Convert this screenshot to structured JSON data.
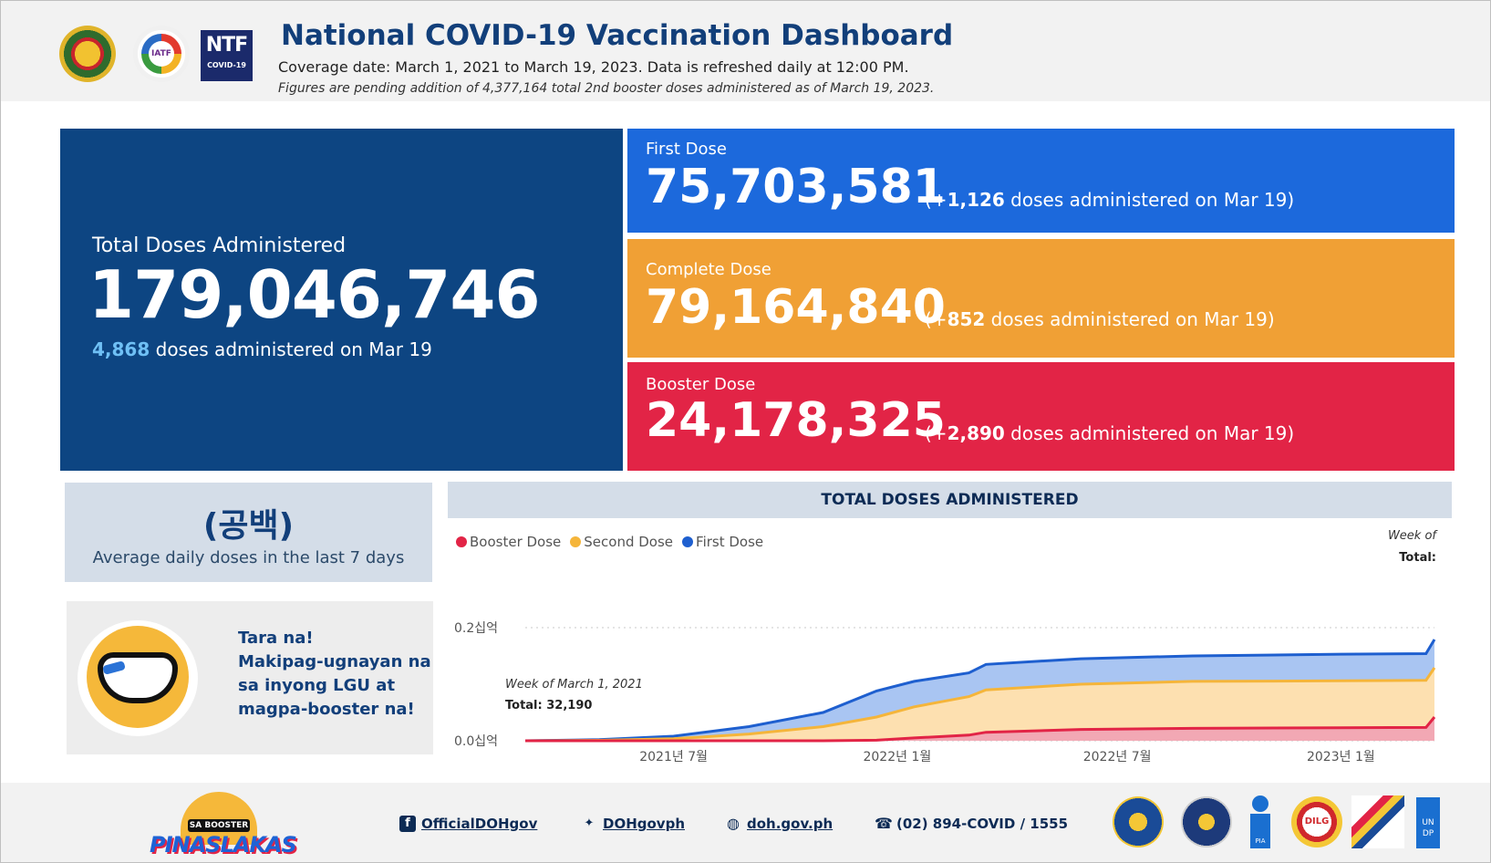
{
  "header": {
    "title": "National COVID-19 Vaccination Dashboard",
    "coverage": "Coverage date: March 1, 2021 to March 19, 2023. Data is refreshed daily at 12:00 PM.",
    "pending_note": "Figures are pending addition of 4,377,164 total 2nd booster doses administered as of March 19, 2023.",
    "logos": [
      {
        "name": "doh-seal-icon"
      },
      {
        "name": "iatf-logo-icon",
        "text": "IATF"
      },
      {
        "name": "ntf-logo-icon",
        "text": "NTF",
        "subtext": "COVID-19"
      }
    ]
  },
  "total": {
    "label": "Total Doses Administered",
    "value": "179,046,746",
    "daily_value": "4,868",
    "daily_suffix": " doses administered on Mar 19"
  },
  "doses": [
    {
      "label": "First Dose",
      "value": "75,703,581",
      "delta_prefix": "(+",
      "delta": "1,126",
      "delta_suffix": " doses administered on Mar 19)",
      "color": "#1c69dc"
    },
    {
      "label": "Complete Dose",
      "value": "79,164,840",
      "delta_prefix": "(+",
      "delta": "852",
      "delta_suffix": " doses administered on Mar 19)",
      "color": "#f0a035"
    },
    {
      "label": "Booster Dose",
      "value": "24,178,325",
      "delta_prefix": "(+",
      "delta": "2,890",
      "delta_suffix": " doses administered on Mar 19)",
      "color": "#e22446"
    }
  ],
  "average": {
    "value": "(공백)",
    "label": "Average daily doses in the last 7 days"
  },
  "promo": {
    "lines": [
      "Tara na!",
      "Makipag-ugnayan na",
      "sa inyong LGU at",
      "magpa-booster na!"
    ]
  },
  "chart_data": {
    "type": "area",
    "title": "TOTAL DOSES ADMINISTERED",
    "legend_placement": "top-left",
    "series": [
      {
        "name": "Booster Dose",
        "color": "#e22446",
        "fill": "#f2a8b4"
      },
      {
        "name": "Second Dose",
        "color": "#f5b53a",
        "fill": "#fde0b0"
      },
      {
        "name": "First Dose",
        "color": "#1e5fcf",
        "fill": "#a9c5f2"
      }
    ],
    "x_ticks": [
      "2021년 7월",
      "2022년 1월",
      "2022년 7월",
      "2023년 1월"
    ],
    "y_ticks": [
      "0.0십억",
      "0.2십억"
    ],
    "x_range": [
      "2021-03-01",
      "2023-03-19"
    ],
    "y_range": [
      0,
      0.2
    ],
    "y_unit": "billions",
    "points": [
      {
        "x": "2021-03-01",
        "first": 0.0,
        "second": 0.0,
        "booster": 0.0
      },
      {
        "x": "2021-05-01",
        "first": 0.002,
        "second": 0.0008,
        "booster": 0.0
      },
      {
        "x": "2021-07-01",
        "first": 0.008,
        "second": 0.0035,
        "booster": 0.0
      },
      {
        "x": "2021-09-01",
        "first": 0.025,
        "second": 0.012,
        "booster": 0.0
      },
      {
        "x": "2021-11-01",
        "first": 0.05,
        "second": 0.025,
        "booster": 0.0
      },
      {
        "x": "2021-12-15",
        "first": 0.088,
        "second": 0.042,
        "booster": 0.001
      },
      {
        "x": "2022-01-15",
        "first": 0.105,
        "second": 0.06,
        "booster": 0.005
      },
      {
        "x": "2022-03-01",
        "first": 0.12,
        "second": 0.078,
        "booster": 0.01
      },
      {
        "x": "2022-03-15",
        "first": 0.135,
        "second": 0.09,
        "booster": 0.015
      },
      {
        "x": "2022-06-01",
        "first": 0.145,
        "second": 0.1,
        "booster": 0.02
      },
      {
        "x": "2022-09-01",
        "first": 0.15,
        "second": 0.105,
        "booster": 0.022
      },
      {
        "x": "2023-01-01",
        "first": 0.153,
        "second": 0.106,
        "booster": 0.023
      },
      {
        "x": "2023-03-12",
        "first": 0.154,
        "second": 0.107,
        "booster": 0.0235
      },
      {
        "x": "2023-03-19",
        "first": 0.179,
        "second": 0.129,
        "booster": 0.042
      }
    ],
    "tooltip": {
      "week_label": "Week of",
      "total_label": "Total:"
    },
    "annotation": {
      "week": "Week of March 1, 2021",
      "total": "Total: 32,190"
    }
  },
  "footer": {
    "campaign": {
      "badge": "SA BOOSTER",
      "word": "PINASLAKAS"
    },
    "links": [
      {
        "icon": "facebook-icon",
        "glyph": "f",
        "text": "OfficialDOHgov"
      },
      {
        "icon": "twitter-icon",
        "glyph": "✦",
        "text": "DOHgovph"
      },
      {
        "icon": "globe-icon",
        "glyph": "◍",
        "text": "doh.gov.ph"
      },
      {
        "icon": "phone-icon",
        "glyph": "☎",
        "text": "(02) 894-COVID / 1555"
      }
    ],
    "partner_logos": {
      "dilg": "DILG",
      "pia": "PIA",
      "undp": "UN DP"
    }
  }
}
